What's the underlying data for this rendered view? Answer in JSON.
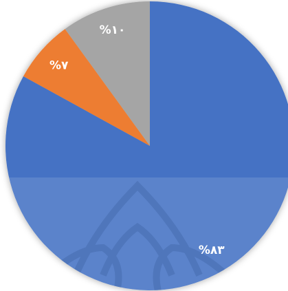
{
  "chart_data": {
    "type": "pie",
    "categories": [
      null,
      null,
      null
    ],
    "values": [
      83,
      7,
      10
    ],
    "value_labels": [
      "%۸۳",
      "%۷",
      "%۱۰"
    ],
    "colors": [
      "#4472c4",
      "#ed7d31",
      "#a5a5a5"
    ]
  }
}
